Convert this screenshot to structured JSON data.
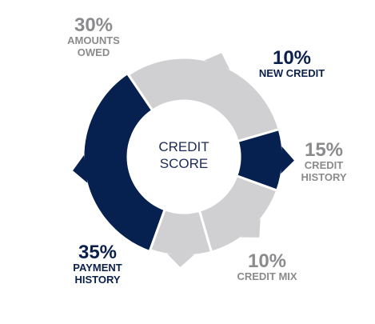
{
  "chart_data": {
    "type": "pie",
    "center_label": [
      "CREDIT",
      "SCORE"
    ],
    "segments": [
      {
        "percent_label": "35%",
        "name_lines": [
          "PAYMENT",
          "HISTORY"
        ],
        "value": 35,
        "color": "#06204f",
        "label_color": "#0b1f4b"
      },
      {
        "percent_label": "30%",
        "name_lines": [
          "AMOUNTS",
          "OWED"
        ],
        "value": 30,
        "color": "#d0d0d2",
        "label_color": "#8b8b8d"
      },
      {
        "percent_label": "10%",
        "name_lines": [
          "NEW CREDIT"
        ],
        "value": 10,
        "color": "#06204f",
        "label_color": "#0b1f4b"
      },
      {
        "percent_label": "15%",
        "name_lines": [
          "CREDIT",
          "HISTORY"
        ],
        "value": 15,
        "color": "#d0d0d2",
        "label_color": "#8b8b8d"
      },
      {
        "percent_label": "10%",
        "name_lines": [
          "CREDIT MIX"
        ],
        "value": 10,
        "color": "#d0d0d2",
        "label_color": "#8b8b8d"
      }
    ]
  }
}
